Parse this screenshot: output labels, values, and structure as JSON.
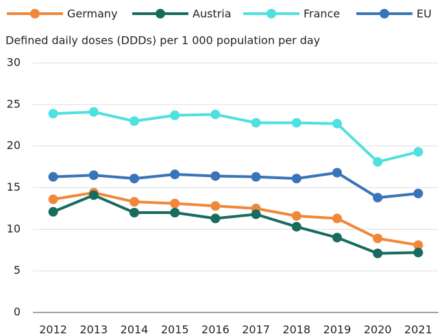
{
  "chart_data": {
    "type": "line",
    "y_label": "Defined daily doses (DDDs) per 1 000 population per day",
    "categories": [
      "2012",
      "2013",
      "2014",
      "2015",
      "2016",
      "2017",
      "2018",
      "2019",
      "2020",
      "2021"
    ],
    "series": [
      {
        "name": "Germany",
        "color": "#f0883a",
        "values": [
          13.6,
          14.4,
          13.3,
          13.1,
          12.8,
          12.5,
          11.6,
          11.3,
          8.9,
          8.1
        ]
      },
      {
        "name": "Austria",
        "color": "#176b5f",
        "values": [
          12.1,
          14.1,
          12.0,
          12.0,
          11.3,
          11.8,
          10.3,
          9.0,
          7.1,
          7.2
        ]
      },
      {
        "name": "France",
        "color": "#4fe0e0",
        "values": [
          23.9,
          24.1,
          23.0,
          23.7,
          23.8,
          22.8,
          22.8,
          22.7,
          18.1,
          19.3
        ]
      },
      {
        "name": "EU",
        "color": "#3a74b8",
        "values": [
          16.3,
          16.5,
          16.1,
          16.6,
          16.4,
          16.3,
          16.1,
          16.8,
          13.8,
          14.3
        ]
      }
    ],
    "ylim": [
      0,
      30
    ],
    "yticks": [
      0,
      5,
      10,
      15,
      20,
      25,
      30
    ],
    "grid": true,
    "legend": "top"
  }
}
